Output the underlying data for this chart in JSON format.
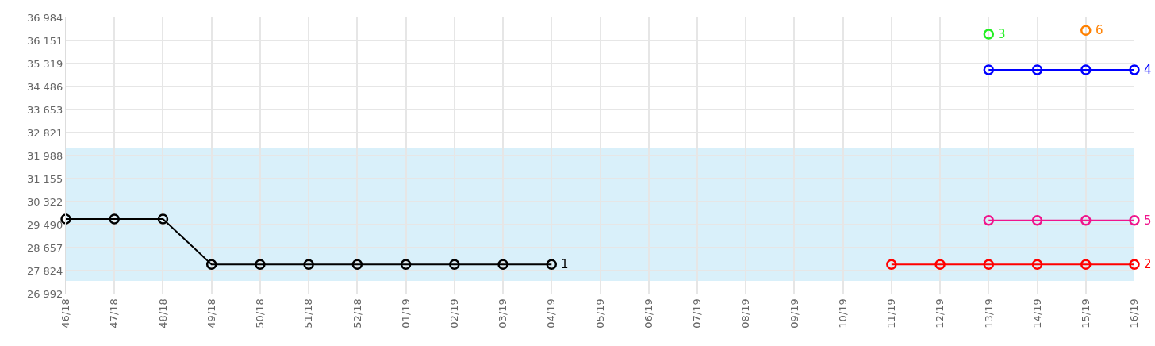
{
  "chart_data": {
    "type": "line",
    "categories": [
      "46/18",
      "47/18",
      "48/18",
      "49/18",
      "50/18",
      "51/18",
      "52/18",
      "01/19",
      "02/19",
      "03/19",
      "04/19",
      "05/19",
      "06/19",
      "07/19",
      "08/19",
      "09/19",
      "10/19",
      "11/19",
      "12/19",
      "13/19",
      "14/19",
      "15/19",
      "16/19"
    ],
    "series": [
      {
        "name": "1",
        "color": "#000000",
        "values": [
          29690,
          29690,
          29690,
          28050,
          28050,
          28050,
          28050,
          28050,
          28050,
          28050,
          28050,
          null,
          null,
          null,
          null,
          null,
          null,
          null,
          null,
          null,
          null,
          null,
          null
        ]
      },
      {
        "name": "2",
        "color": "#ff0000",
        "values": [
          null,
          null,
          null,
          null,
          null,
          null,
          null,
          null,
          null,
          null,
          null,
          null,
          null,
          null,
          null,
          null,
          null,
          28050,
          28050,
          28050,
          28050,
          28050,
          28050
        ]
      },
      {
        "name": "3",
        "color": "#22ee22",
        "values": [
          null,
          null,
          null,
          null,
          null,
          null,
          null,
          null,
          null,
          null,
          null,
          null,
          null,
          null,
          null,
          null,
          null,
          null,
          null,
          36380,
          null,
          null,
          null
        ]
      },
      {
        "name": "4",
        "color": "#0000ff",
        "values": [
          null,
          null,
          null,
          null,
          null,
          null,
          null,
          null,
          null,
          null,
          null,
          null,
          null,
          null,
          null,
          null,
          null,
          null,
          null,
          35090,
          35090,
          35090,
          35090
        ]
      },
      {
        "name": "5",
        "color": "#f0148c",
        "values": [
          null,
          null,
          null,
          null,
          null,
          null,
          null,
          null,
          null,
          null,
          null,
          null,
          null,
          null,
          null,
          null,
          null,
          null,
          null,
          29640,
          29640,
          29640,
          29640
        ]
      },
      {
        "name": "6",
        "color": "#ff8000",
        "values": [
          null,
          null,
          null,
          null,
          null,
          null,
          null,
          null,
          null,
          null,
          null,
          null,
          null,
          null,
          null,
          null,
          null,
          null,
          null,
          null,
          null,
          36520,
          null
        ]
      }
    ],
    "ylim": [
      26992,
      36984
    ],
    "yticks": [
      {
        "value": 26992,
        "label": "26 992"
      },
      {
        "value": 27824,
        "label": "27 824"
      },
      {
        "value": 28657,
        "label": "28 657"
      },
      {
        "value": 29490,
        "label": "29 490"
      },
      {
        "value": 30322,
        "label": "30 322"
      },
      {
        "value": 31155,
        "label": "31 155"
      },
      {
        "value": 31988,
        "label": "31 988"
      },
      {
        "value": 32821,
        "label": "32 821"
      },
      {
        "value": 33653,
        "label": "33 653"
      },
      {
        "value": 34486,
        "label": "34 486"
      },
      {
        "value": 35319,
        "label": "35 319"
      },
      {
        "value": 36151,
        "label": "36 151"
      },
      {
        "value": 36984,
        "label": "36 984"
      }
    ],
    "bands": [
      {
        "axis": "y",
        "from": 27450,
        "to": 32270,
        "color": "#d9f0fa"
      }
    ],
    "grid": true,
    "legend": false,
    "marker": "circle",
    "line_style": "solid"
  }
}
